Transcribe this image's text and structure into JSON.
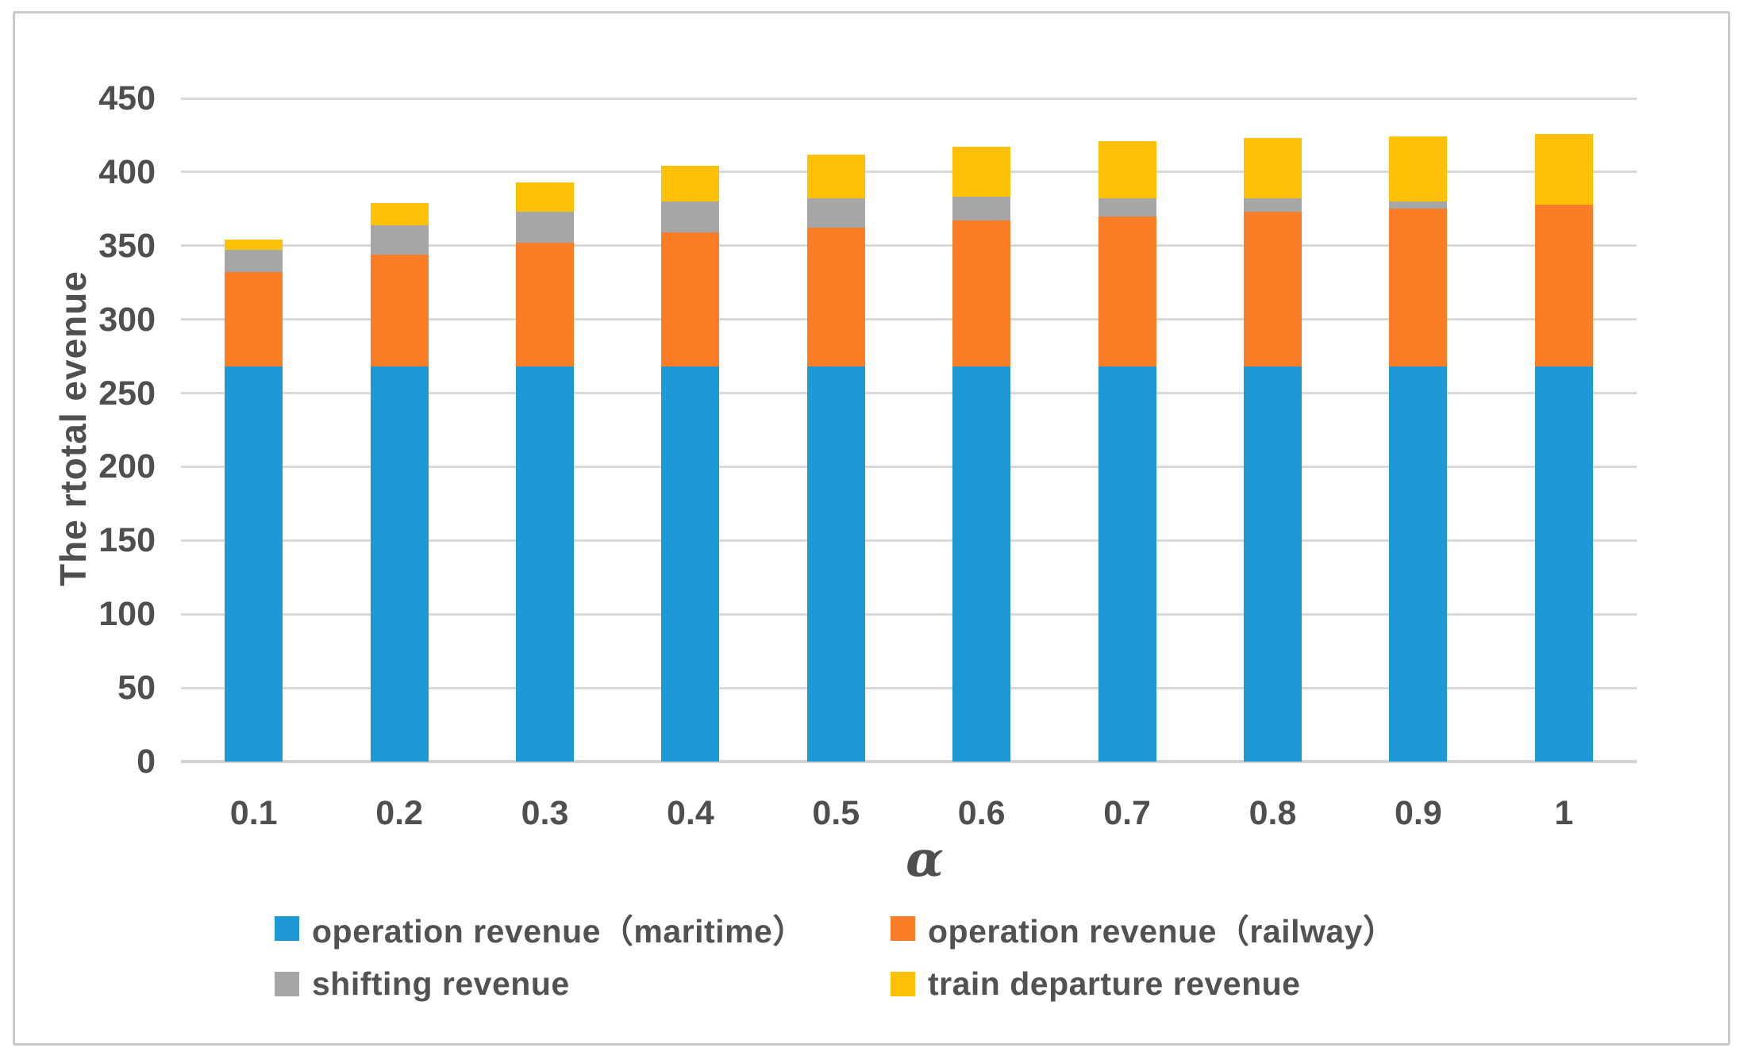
{
  "chart_data": {
    "type": "bar",
    "stacked": true,
    "categories": [
      "0.1",
      "0.2",
      "0.3",
      "0.4",
      "0.5",
      "0.6",
      "0.7",
      "0.8",
      "0.9",
      "1"
    ],
    "series": [
      {
        "name": "operation revenue（maritime）",
        "color": "#1e99d6",
        "values": [
          268,
          268,
          268,
          268,
          268,
          268,
          268,
          268,
          268,
          268
        ]
      },
      {
        "name": "operation revenue（railway）",
        "color": "#fb7d26",
        "values": [
          64,
          76,
          84,
          91,
          94,
          99,
          102,
          105,
          107,
          110
        ]
      },
      {
        "name": "shifting revenue",
        "color": "#a6a6a6",
        "values": [
          15,
          20,
          21,
          21,
          20,
          16,
          12,
          9,
          5,
          0
        ]
      },
      {
        "name": "train departure revenue",
        "color": "#ffc008",
        "values": [
          7,
          15,
          20,
          24,
          30,
          34,
          39,
          41,
          44,
          48
        ]
      }
    ],
    "totals": [
      354,
      379,
      393,
      404,
      412,
      417,
      421,
      423,
      424,
      426
    ],
    "xlabel": "α",
    "ylabel": "The rtotal evenue",
    "ylim": [
      0,
      450
    ],
    "yticks": [
      0,
      50,
      100,
      150,
      200,
      250,
      300,
      350,
      400,
      450
    ],
    "grid": "horizontal",
    "legend_position": "bottom",
    "gridline_color": "#d9d9d9",
    "text_color": "#4f4f4f"
  }
}
